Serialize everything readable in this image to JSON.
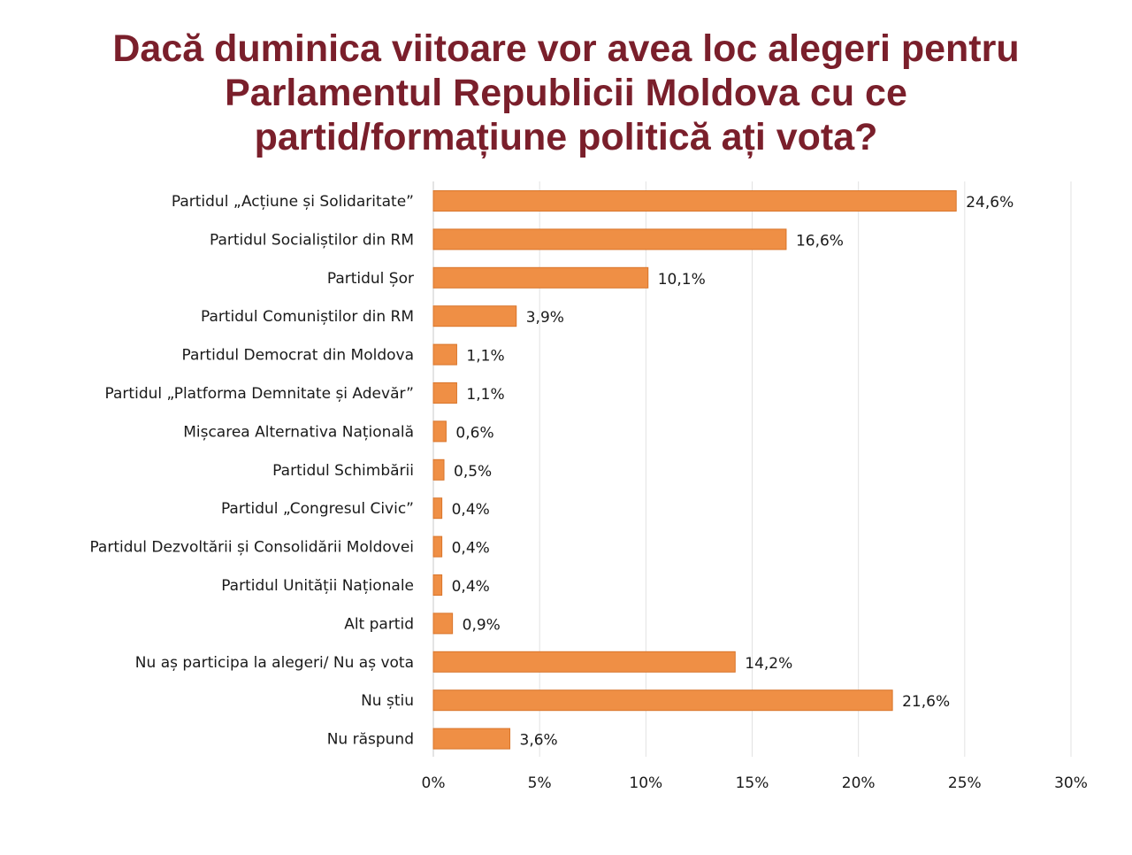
{
  "chart_data": {
    "type": "bar",
    "orientation": "horizontal",
    "title_lines": [
      "Dacă duminica viitoare vor avea loc alegeri pentru",
      "Parlamentul Republicii Moldova cu ce",
      "partid/formațiune politică ați vota?"
    ],
    "categories": [
      "Partidul „Acțiune și Solidaritate”",
      "Partidul Socialiștilor din RM",
      "Partidul Șor",
      "Partidul Comuniștilor din RM",
      "Partidul Democrat din Moldova",
      "Partidul „Platforma Demnitate și Adevăr”",
      "Mișcarea Alternativa Națională",
      "Partidul Schimbării",
      "Partidul „Congresul Civic”",
      "Partidul Dezvoltării și Consolidării Moldovei",
      "Partidul Unității Naționale",
      "Alt partid",
      "Nu aș participa la alegeri/ Nu aș vota",
      "Nu știu",
      "Nu răspund"
    ],
    "values": [
      24.6,
      16.6,
      10.1,
      3.9,
      1.1,
      1.1,
      0.6,
      0.5,
      0.4,
      0.4,
      0.4,
      0.9,
      14.2,
      21.6,
      3.6
    ],
    "value_labels": [
      "24,6%",
      "16,6%",
      "10,1%",
      "3,9%",
      "1,1%",
      "1,1%",
      "0,6%",
      "0,5%",
      "0,4%",
      "0,4%",
      "0,4%",
      "0,9%",
      "14,2%",
      "21,6%",
      "3,6%"
    ],
    "xlim": [
      0,
      30
    ],
    "xticks": [
      0,
      5,
      10,
      15,
      20,
      25,
      30
    ],
    "xtick_labels": [
      "0%",
      "5%",
      "10%",
      "15%",
      "20%",
      "25%",
      "30%"
    ],
    "grid": "vertical",
    "legend": "none",
    "xlabel": "",
    "ylabel": "",
    "colors": {
      "bar": "#ef8f45",
      "bar_edge": "#d9752b",
      "title": "#7a1f2b",
      "grid": "#e2e2e2",
      "text": "#1a1a1a"
    }
  }
}
